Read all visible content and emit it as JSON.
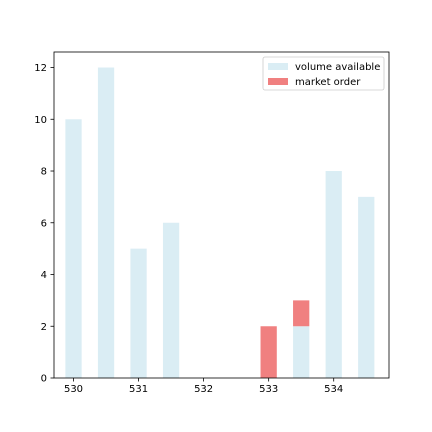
{
  "chart_data": {
    "type": "bar",
    "title": "",
    "xlabel": "",
    "ylabel": "",
    "xlim": [
      529.7,
      534.85
    ],
    "ylim": [
      0,
      12.6
    ],
    "bar_width": 0.25,
    "xticks": [
      530,
      531,
      532,
      533,
      534
    ],
    "yticks": [
      0,
      2,
      4,
      6,
      8,
      10,
      12
    ],
    "grid": false,
    "legend_position": "upper right",
    "series": [
      {
        "name": "volume available",
        "color": "#add8e6",
        "opacity": 0.45,
        "bars": [
          {
            "x": 530.0,
            "bottom": 0,
            "value": 10
          },
          {
            "x": 530.5,
            "bottom": 0,
            "value": 12
          },
          {
            "x": 531.0,
            "bottom": 0,
            "value": 5
          },
          {
            "x": 531.5,
            "bottom": 0,
            "value": 6
          },
          {
            "x": 533.5,
            "bottom": 0,
            "value": 2
          },
          {
            "x": 534.0,
            "bottom": 0,
            "value": 8
          },
          {
            "x": 534.5,
            "bottom": 0,
            "value": 7
          }
        ]
      },
      {
        "name": "market order",
        "color": "#f08080",
        "opacity": 1,
        "bars": [
          {
            "x": 533.0,
            "bottom": 0,
            "value": 2
          },
          {
            "x": 533.5,
            "bottom": 2,
            "value": 1
          }
        ]
      }
    ]
  }
}
